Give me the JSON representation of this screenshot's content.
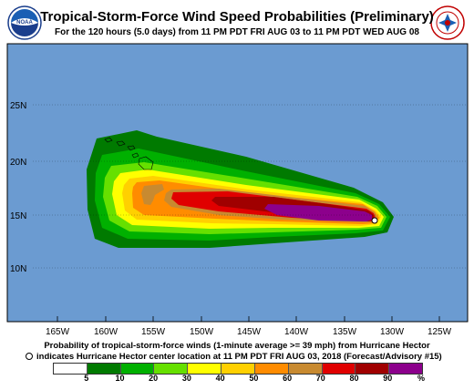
{
  "header": {
    "title": "Tropical-Storm-Force Wind Speed Probabilities (Preliminary)",
    "subtitle": "For the 120 hours (5.0 days) from 11 PM PDT FRI AUG 03 to 11 PM PDT WED AUG 08",
    "left_logo": "noaa-logo",
    "right_logo": "national-weather-service-logo"
  },
  "map": {
    "ocean_color": "#6b9bd1",
    "latitude_labels": [
      "25N",
      "20N",
      "15N",
      "10N"
    ],
    "longitude_labels": [
      "165W",
      "160W",
      "155W",
      "150W",
      "145W",
      "140W",
      "135W",
      "130W",
      "125W"
    ]
  },
  "caption": {
    "line1": "Probability of tropical-storm-force winds (1-minute average >= 39 mph) from Hurricane Hector",
    "line2": "indicates Hurricane Hector center location at 11 PM PDT FRI AUG 03, 2018 (Forecast/Advisory #15)"
  },
  "legend": {
    "labels": [
      "5",
      "10",
      "20",
      "30",
      "40",
      "50",
      "60",
      "70",
      "80",
      "90",
      "%"
    ],
    "colors": [
      "#ffffff",
      "#007a00",
      "#00b000",
      "#66e000",
      "#ffff00",
      "#ffd000",
      "#ff8c00",
      "#c88a30",
      "#e00000",
      "#a00000",
      "#8c008c"
    ]
  }
}
